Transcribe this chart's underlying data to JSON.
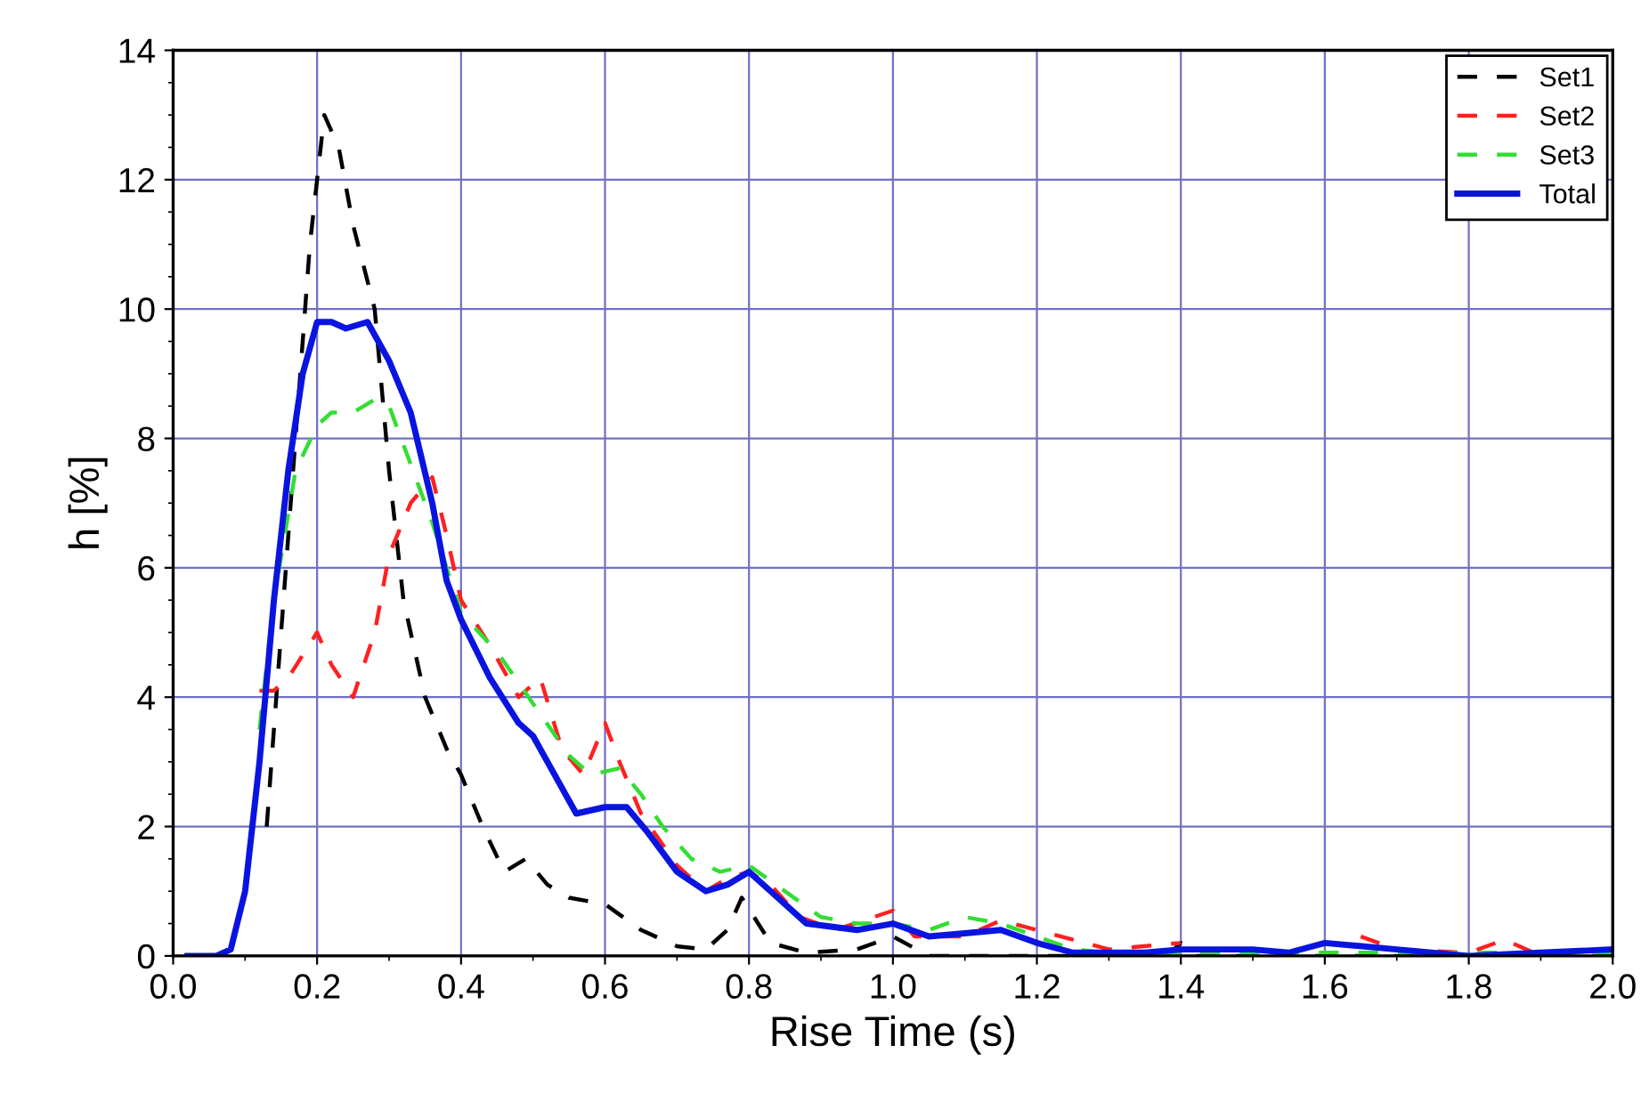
{
  "chart_data": {
    "type": "line",
    "xlabel": "Rise Time (s)",
    "ylabel": "h [%]",
    "xlim": [
      0.0,
      2.0
    ],
    "ylim": [
      0,
      14
    ],
    "xticks": [
      {
        "value": 0.0,
        "label": "0.0"
      },
      0.2,
      0.4,
      0.6,
      0.8,
      {
        "value": 1.0,
        "label": "1.0"
      },
      1.2,
      1.4,
      1.6,
      1.8,
      {
        "value": 2.0,
        "label": "2.0"
      }
    ],
    "yticks": [
      0,
      2,
      4,
      6,
      8,
      10,
      12,
      14
    ],
    "grid": true,
    "legend": "top right",
    "marker": "none",
    "series": [
      {
        "name": "Set1",
        "color": "#000000",
        "line_style": "dashed",
        "x": [
          0.13,
          0.15,
          0.17,
          0.19,
          0.21,
          0.23,
          0.25,
          0.28,
          0.3,
          0.32,
          0.35,
          0.38,
          0.4,
          0.43,
          0.46,
          0.49,
          0.52,
          0.55,
          0.6,
          0.65,
          0.7,
          0.74,
          0.77,
          0.79,
          0.83,
          0.88,
          0.95,
          1.0,
          1.05,
          1.2,
          1.38,
          1.4,
          1.42,
          1.6,
          1.8,
          2.0
        ],
        "values": [
          2,
          5,
          8,
          11,
          13,
          12.5,
          11.3,
          10,
          7.5,
          5.5,
          4,
          3.2,
          2.8,
          2,
          1.3,
          1.5,
          1.1,
          0.9,
          0.8,
          0.4,
          0.15,
          0.1,
          0.4,
          0.9,
          0.2,
          0.05,
          0.1,
          0.3,
          0.0,
          0.0,
          0.0,
          0.2,
          0.0,
          0.0,
          0.0,
          0.0
        ]
      },
      {
        "name": "Set2",
        "color": "#ff2020",
        "line_style": "dashed",
        "x": [
          0.12,
          0.14,
          0.16,
          0.2,
          0.22,
          0.25,
          0.28,
          0.3,
          0.33,
          0.36,
          0.38,
          0.4,
          0.44,
          0.48,
          0.51,
          0.54,
          0.57,
          0.6,
          0.62,
          0.65,
          0.7,
          0.74,
          0.77,
          0.8,
          0.83,
          0.87,
          0.92,
          1.0,
          1.03,
          1.1,
          1.15,
          1.2,
          1.3,
          1.4,
          1.5,
          1.55,
          1.65,
          1.7,
          1.8,
          1.85,
          1.9
        ],
        "values": [
          4.1,
          4.1,
          4.3,
          5,
          4.5,
          4.0,
          5,
          6.2,
          7.0,
          7.4,
          6.5,
          5.5,
          4.8,
          4.0,
          4.3,
          3.2,
          2.8,
          3.6,
          3.0,
          2.2,
          1.4,
          1.0,
          1.2,
          1.3,
          1.1,
          0.6,
          0.4,
          0.7,
          0.3,
          0.3,
          0.55,
          0.4,
          0.1,
          0.2,
          null,
          null,
          0.3,
          0.1,
          0.05,
          0.25,
          0.0
        ]
      },
      {
        "name": "Set3",
        "color": "#33dd33",
        "line_style": "dashed",
        "x": [
          0.12,
          0.14,
          0.17,
          0.2,
          0.22,
          0.25,
          0.28,
          0.3,
          0.33,
          0.36,
          0.4,
          0.45,
          0.5,
          0.55,
          0.58,
          0.62,
          0.65,
          0.68,
          0.72,
          0.76,
          0.8,
          0.85,
          0.9,
          0.95,
          1.0,
          1.05,
          1.1,
          1.15,
          1.2,
          1.25,
          1.3,
          1.4,
          2.0
        ],
        "values": [
          3.5,
          5.5,
          7.5,
          8.2,
          8.4,
          8.4,
          8.6,
          8.5,
          7.6,
          6.7,
          5.3,
          4.7,
          3.9,
          3.1,
          2.8,
          2.9,
          2.5,
          2.0,
          1.5,
          1.3,
          1.4,
          1.0,
          0.6,
          0.5,
          0.5,
          0.4,
          0.6,
          0.5,
          0.3,
          0.1,
          0.05,
          0.05,
          0.05
        ]
      },
      {
        "name": "Total",
        "color": "#0a14e0",
        "line_style": "solid",
        "x": [
          0.02,
          0.06,
          0.08,
          0.1,
          0.12,
          0.14,
          0.16,
          0.18,
          0.2,
          0.22,
          0.24,
          0.27,
          0.3,
          0.33,
          0.36,
          0.38,
          0.4,
          0.44,
          0.48,
          0.5,
          0.52,
          0.56,
          0.6,
          0.63,
          0.66,
          0.7,
          0.74,
          0.77,
          0.8,
          0.83,
          0.88,
          0.95,
          1.0,
          1.05,
          1.1,
          1.15,
          1.2,
          1.25,
          1.35,
          1.4,
          1.5,
          1.55,
          1.6,
          1.7,
          1.8,
          1.9,
          2.0
        ],
        "values": [
          0,
          0,
          0.1,
          1,
          3,
          5.5,
          7.5,
          9,
          9.8,
          9.8,
          9.7,
          9.8,
          9.2,
          8.4,
          7,
          5.8,
          5.2,
          4.3,
          3.6,
          3.4,
          3.0,
          2.2,
          2.3,
          2.3,
          1.9,
          1.3,
          1.0,
          1.1,
          1.3,
          1.0,
          0.5,
          0.4,
          0.5,
          0.3,
          0.35,
          0.4,
          0.2,
          0.05,
          0.05,
          0.1,
          0.1,
          0.05,
          0.2,
          0.1,
          0.0,
          0.05,
          0.1
        ]
      }
    ]
  }
}
